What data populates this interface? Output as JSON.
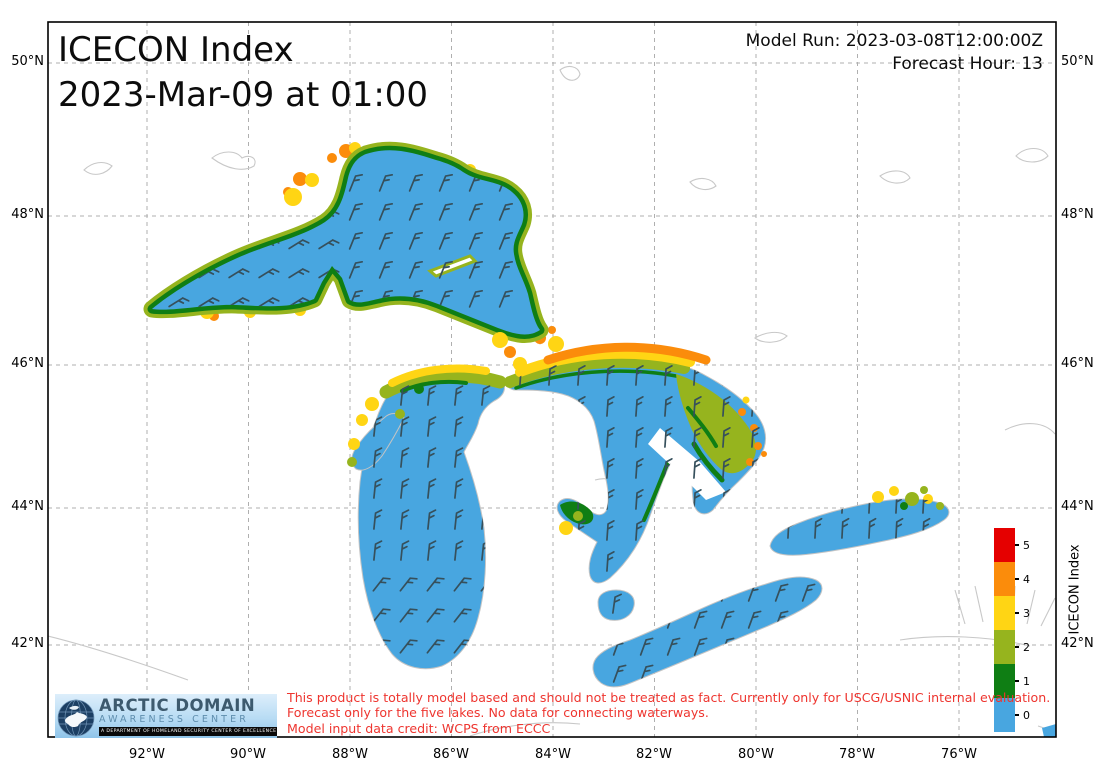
{
  "title": {
    "line1": "ICECON Index",
    "line2": "2023-Mar-09 at 01:00"
  },
  "model_info": {
    "model_run": "Model Run: 2023-03-08T12:00:00Z",
    "forecast_hour": "Forecast Hour: 13"
  },
  "axes": {
    "lat_labels": [
      "50°N",
      "48°N",
      "46°N",
      "44°N",
      "42°N"
    ],
    "lon_labels": [
      "92°W",
      "90°W",
      "88°W",
      "86°W",
      "84°W",
      "82°W",
      "80°W",
      "78°W",
      "76°W"
    ]
  },
  "colorbar": {
    "label": "ICECON Index",
    "entries": [
      {
        "value": "5",
        "color": "#E50000"
      },
      {
        "value": "4",
        "color": "#FB8C0B"
      },
      {
        "value": "3",
        "color": "#FFD514"
      },
      {
        "value": "2",
        "color": "#96B41E"
      },
      {
        "value": "1",
        "color": "#0F7E14"
      },
      {
        "value": "0",
        "color": "#48A6E0"
      }
    ]
  },
  "map": {
    "lakes": [
      "Lake Superior",
      "Lake Michigan",
      "Lake Huron",
      "Lake St. Clair",
      "Lake Erie",
      "Lake Ontario"
    ],
    "water_color": "#48A6E0",
    "ice_color_green": "#0F7E14",
    "ice_color_olive": "#96B41E",
    "ice_color_yellow": "#FFD514",
    "ice_color_orange": "#FB8C0B",
    "wind_barb_color": "#36505C",
    "coastline_color": "#C8C8C8",
    "gridline_color": "#AFAFAF"
  },
  "logo": {
    "line1": "ARCTIC DOMAIN",
    "line2": "AWARENESS CENTER",
    "line3": "A DEPARTMENT OF HOMELAND SECURITY CENTER OF EXCELLENCE"
  },
  "disclaimer": {
    "line1": "This product is totally model based and should not be treated as fact. Currently only for USCG/USNIC internal evaluation.",
    "line2": "Forecast only for the five lakes. No data for connecting waterways.",
    "line3": "Model input data credit: WCPS from ECCC"
  }
}
